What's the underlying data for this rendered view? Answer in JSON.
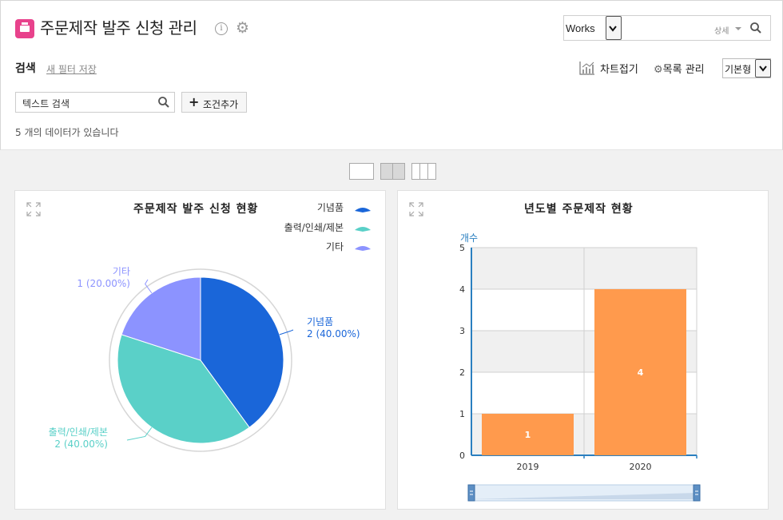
{
  "header": {
    "title": "주문제작 발주 신청 관리",
    "search_scope": "Works",
    "detail_label": "상세"
  },
  "toolbar": {
    "search_label": "검색",
    "save_filter": "새 필터 저장",
    "chart_fold": "차트접기",
    "list_manage": "목록 관리",
    "view_type": "기본형",
    "text_search_placeholder": "텍스트 검색",
    "add_condition": "조건추가",
    "count_text": "5 개의 데이터가 있습니다"
  },
  "chart_data": [
    {
      "type": "pie",
      "title": "주문제작 발주 신청 현황",
      "legend_position": "top-right",
      "slices": [
        {
          "name": "기념품",
          "value": 2,
          "percent": "40.00%",
          "color": "#1a66d9",
          "label": "2 (40.00%)"
        },
        {
          "name": "출력/인쇄/제본",
          "value": 2,
          "percent": "40.00%",
          "color": "#5ad0c8",
          "label": "2 (40.00%)"
        },
        {
          "name": "기타",
          "value": 1,
          "percent": "20.00%",
          "color": "#8c93ff",
          "label": "1 (20.00%)"
        }
      ]
    },
    {
      "type": "bar",
      "title": "년도별 주문제작 현황",
      "ylabel": "개수",
      "xlabel": "",
      "categories": [
        "2019",
        "2020"
      ],
      "values": [
        1,
        4
      ],
      "ylim": [
        0,
        5
      ],
      "yticks": [
        "0",
        "1",
        "2",
        "3",
        "4",
        "5"
      ],
      "bar_color": "#ff9a4d",
      "grid": true
    }
  ]
}
